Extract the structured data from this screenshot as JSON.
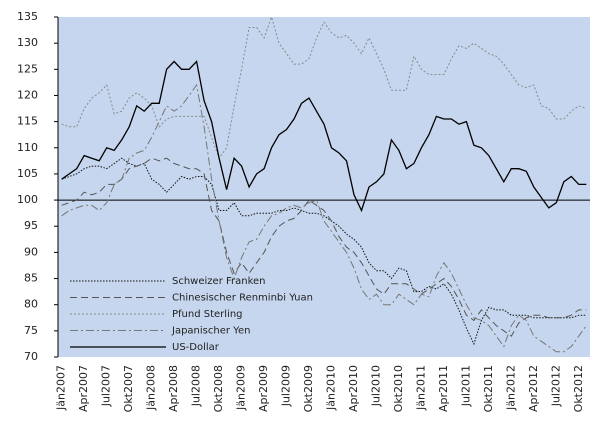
{
  "chart_data": {
    "type": "line",
    "categories": [
      "Jän2007",
      null,
      null,
      "Apr2007",
      null,
      null,
      "Jul2007",
      null,
      null,
      "Okt2007",
      null,
      null,
      "Jän2008",
      null,
      null,
      "Apr2008",
      null,
      null,
      "Jul2008",
      null,
      null,
      "Okt2008",
      null,
      null,
      "Jän2009",
      null,
      null,
      "Apr2009",
      null,
      null,
      "Jul2009",
      null,
      null,
      "Okt2009",
      null,
      null,
      "Jän2010",
      null,
      null,
      "Apr2010",
      null,
      null,
      "Jul2010",
      null,
      null,
      "Okt2010",
      null,
      null,
      "Jän2011",
      null,
      null,
      "Apr2011",
      null,
      null,
      "Jul2011",
      null,
      null,
      "Okt2011",
      null,
      null,
      "Jän2012",
      null,
      null,
      "Apr2012",
      null,
      null,
      "Jul2012",
      null,
      null,
      "Okt2012",
      null
    ],
    "ylim": [
      70,
      135
    ],
    "yticks": [
      70,
      75,
      80,
      85,
      90,
      95,
      100,
      105,
      110,
      115,
      120,
      125,
      130,
      135
    ],
    "x_axis_at": 100,
    "series": [
      {
        "name": "Schweizer Franken",
        "color": "#111111",
        "dash": "1.5,1.5",
        "values": [
          104,
          104.5,
          105,
          106,
          106.5,
          106.5,
          106,
          107,
          108,
          107,
          106.5,
          107,
          104,
          103,
          101.5,
          103,
          104.5,
          104,
          104.5,
          104.5,
          103,
          98,
          98,
          99.5,
          97,
          97,
          97.5,
          97.5,
          97.5,
          98,
          98,
          98.5,
          98,
          97.5,
          97.5,
          97,
          96,
          95,
          93.5,
          92.5,
          91,
          88,
          86.5,
          86.5,
          85,
          87,
          86.5,
          82.5,
          82.5,
          83.5,
          83,
          84,
          82,
          79,
          75.5,
          72.5,
          77,
          79.5,
          79,
          79,
          78,
          78,
          78,
          77.5,
          77.5,
          77.5,
          77.5,
          77.5,
          77.5,
          78,
          78
        ]
      },
      {
        "name": "Chinesischer Renminbi Yuan",
        "color": "#555555",
        "dash": "7,4",
        "values": [
          99,
          99.5,
          100,
          101.5,
          101,
          101.5,
          103,
          103,
          104,
          106,
          106.5,
          107,
          108,
          107.5,
          108,
          107,
          106.5,
          106,
          106,
          105,
          98,
          96,
          90,
          86,
          88,
          86,
          88,
          90,
          93,
          95,
          96,
          96.5,
          98,
          100,
          99,
          98,
          96,
          93,
          91,
          90,
          88,
          85.5,
          83,
          82,
          84,
          84,
          84,
          83,
          82,
          83,
          84,
          85,
          83.5,
          81,
          78,
          77,
          79,
          77.5,
          76,
          75,
          74,
          76.5,
          77.5,
          78,
          78,
          77.5,
          77.5,
          77.5,
          78,
          79,
          79
        ]
      },
      {
        "name": "Pfund Sterling",
        "color": "#8a8a8a",
        "dash": "2,2",
        "values": [
          114.5,
          114,
          114,
          117.5,
          119.5,
          120.5,
          122,
          116.5,
          117,
          119.5,
          120.5,
          119.5,
          118,
          114,
          115.5,
          116,
          116,
          116,
          116,
          116,
          112,
          108,
          110,
          118,
          125,
          133,
          133,
          131,
          135,
          130,
          128,
          126,
          126,
          127,
          131,
          134,
          132,
          131,
          131.5,
          130,
          128,
          131,
          128,
          125,
          121,
          121,
          121,
          127.5,
          125,
          124,
          124,
          124,
          127,
          129.5,
          129,
          130,
          129,
          128,
          127.5,
          126,
          124,
          122,
          121.5,
          122,
          118,
          117.5,
          115.5,
          115.5,
          117,
          118,
          117.5
        ]
      },
      {
        "name": "Japanischer Yen",
        "color": "#777777",
        "dash": "8,3,2,3",
        "values": [
          97,
          98,
          98.5,
          99,
          99,
          98,
          99.5,
          103,
          104,
          108,
          109,
          109.5,
          112,
          115,
          118,
          117,
          118,
          120,
          122,
          114,
          104,
          96,
          89,
          85,
          89,
          92,
          92.5,
          95,
          97,
          97.5,
          98.5,
          99,
          98.5,
          99.5,
          100,
          96,
          94,
          92,
          90,
          87,
          83,
          81,
          82,
          80,
          80,
          82,
          81,
          80,
          82,
          81.5,
          85.5,
          88,
          86,
          83,
          80,
          77.5,
          77,
          76,
          74,
          72,
          76,
          78,
          77,
          74,
          73,
          72,
          71,
          71,
          72,
          74,
          76
        ]
      },
      {
        "name": "US-Dollar",
        "color": "#000000",
        "dash": "none",
        "values": [
          104,
          105,
          106,
          108.5,
          108,
          107.5,
          110,
          109.5,
          111.5,
          114,
          118,
          117,
          118.5,
          118.5,
          125,
          126.5,
          125,
          125,
          126.5,
          119,
          115,
          108,
          102,
          108,
          106.5,
          102.5,
          105,
          106,
          110,
          112.5,
          113.5,
          115.5,
          118.5,
          119.5,
          117,
          114.5,
          110,
          109,
          107.5,
          101,
          98,
          102.5,
          103.5,
          105,
          111.5,
          109.5,
          106,
          107,
          110,
          112.5,
          116,
          115.5,
          115.5,
          114.5,
          115,
          110.5,
          110,
          108.5,
          106,
          103.5,
          106,
          106,
          105.5,
          102.5,
          100.5,
          98.5,
          99.5,
          103.5,
          104.5,
          103,
          103
        ]
      }
    ]
  }
}
